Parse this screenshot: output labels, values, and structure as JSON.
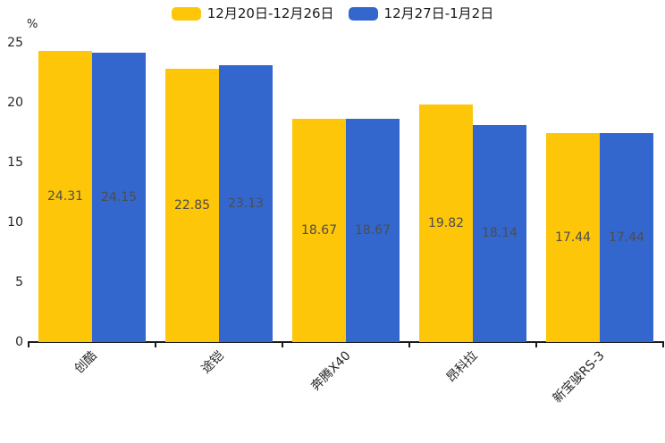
{
  "chart_data": {
    "type": "bar",
    "title": "",
    "ylabel": "%",
    "xlabel": "",
    "ylim": [
      0,
      25
    ],
    "yticks": [
      0,
      5,
      10,
      15,
      20,
      25
    ],
    "grid": false,
    "legend_position": "top",
    "value_labels": true,
    "xlabel_rotation_deg": 45,
    "categories": [
      "创酷",
      "途铠",
      "奔腾X40",
      "昂科拉",
      "新宝骏RS-3"
    ],
    "series": [
      {
        "name": "12月20日-12月26日",
        "color": "#FDC608",
        "values": [
          24.31,
          22.85,
          18.67,
          19.82,
          17.44
        ]
      },
      {
        "name": "12月27日-1月2日",
        "color": "#3367CE",
        "values": [
          24.15,
          23.13,
          18.67,
          18.14,
          17.44
        ]
      }
    ],
    "colors": {
      "value_label": "#4d4d4d",
      "axis": "#1a1a1a",
      "tick_label": "#262626",
      "background": "#ffffff"
    }
  }
}
